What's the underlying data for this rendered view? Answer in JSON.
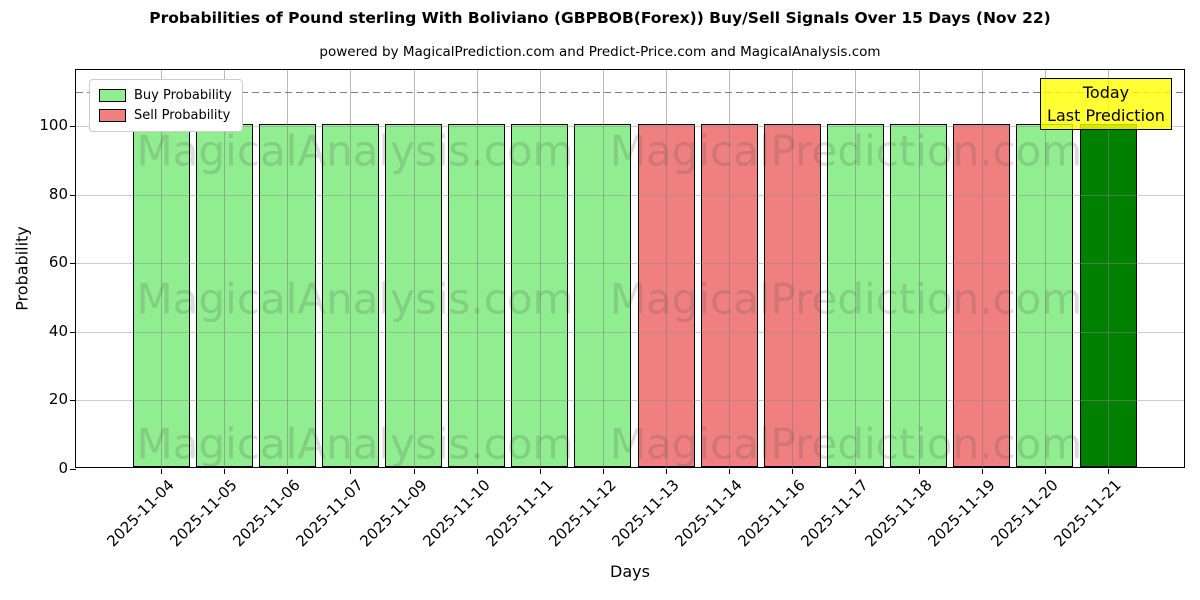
{
  "title": "Probabilities of Pound sterling With Boliviano (GBPBOB(Forex)) Buy/Sell Signals Over 15 Days (Nov 22)",
  "subtitle": "powered by MagicalPrediction.com and Predict-Price.com and MagicalAnalysis.com",
  "legend": {
    "buy_label": "Buy Probability",
    "sell_label": "Sell Probability"
  },
  "annotation": {
    "line1": "Today",
    "line2": "Last Prediction"
  },
  "watermarks": [
    "MagicalAnalysis.com",
    "MagicalPrediction.com"
  ],
  "colors": {
    "buy": "#90ee90",
    "sell": "#f08080",
    "today": "#008000",
    "annotation_bg": "#ffff00",
    "dashed_line": "#7f7f7f"
  },
  "chart_data": {
    "type": "bar",
    "title": "Probabilities of Pound sterling With Boliviano (GBPBOB(Forex)) Buy/Sell Signals Over 15 Days (Nov 22)",
    "xlabel": "Days",
    "ylabel": "Probability",
    "categories": [
      "2025-11-04",
      "2025-11-05",
      "2025-11-06",
      "2025-11-07",
      "2025-11-09",
      "2025-11-10",
      "2025-11-11",
      "2025-11-12",
      "2025-11-13",
      "2025-11-14",
      "2025-11-16",
      "2025-11-17",
      "2025-11-18",
      "2025-11-19",
      "2025-11-20",
      "2025-11-21"
    ],
    "values": [
      100,
      100,
      100,
      100,
      100,
      100,
      100,
      100,
      100,
      100,
      100,
      100,
      100,
      100,
      100,
      100
    ],
    "signals": [
      "buy",
      "buy",
      "buy",
      "buy",
      "buy",
      "buy",
      "buy",
      "buy",
      "sell",
      "sell",
      "sell",
      "buy",
      "buy",
      "sell",
      "buy",
      "today"
    ],
    "series": [
      {
        "name": "Buy Probability",
        "color": "#90ee90"
      },
      {
        "name": "Sell Probability",
        "color": "#f08080"
      }
    ],
    "yticks": [
      0,
      20,
      40,
      60,
      80,
      100
    ],
    "ylim": [
      0,
      116.3
    ],
    "dashed_line_y": 110,
    "grid": true,
    "legend_position": "upper left"
  }
}
